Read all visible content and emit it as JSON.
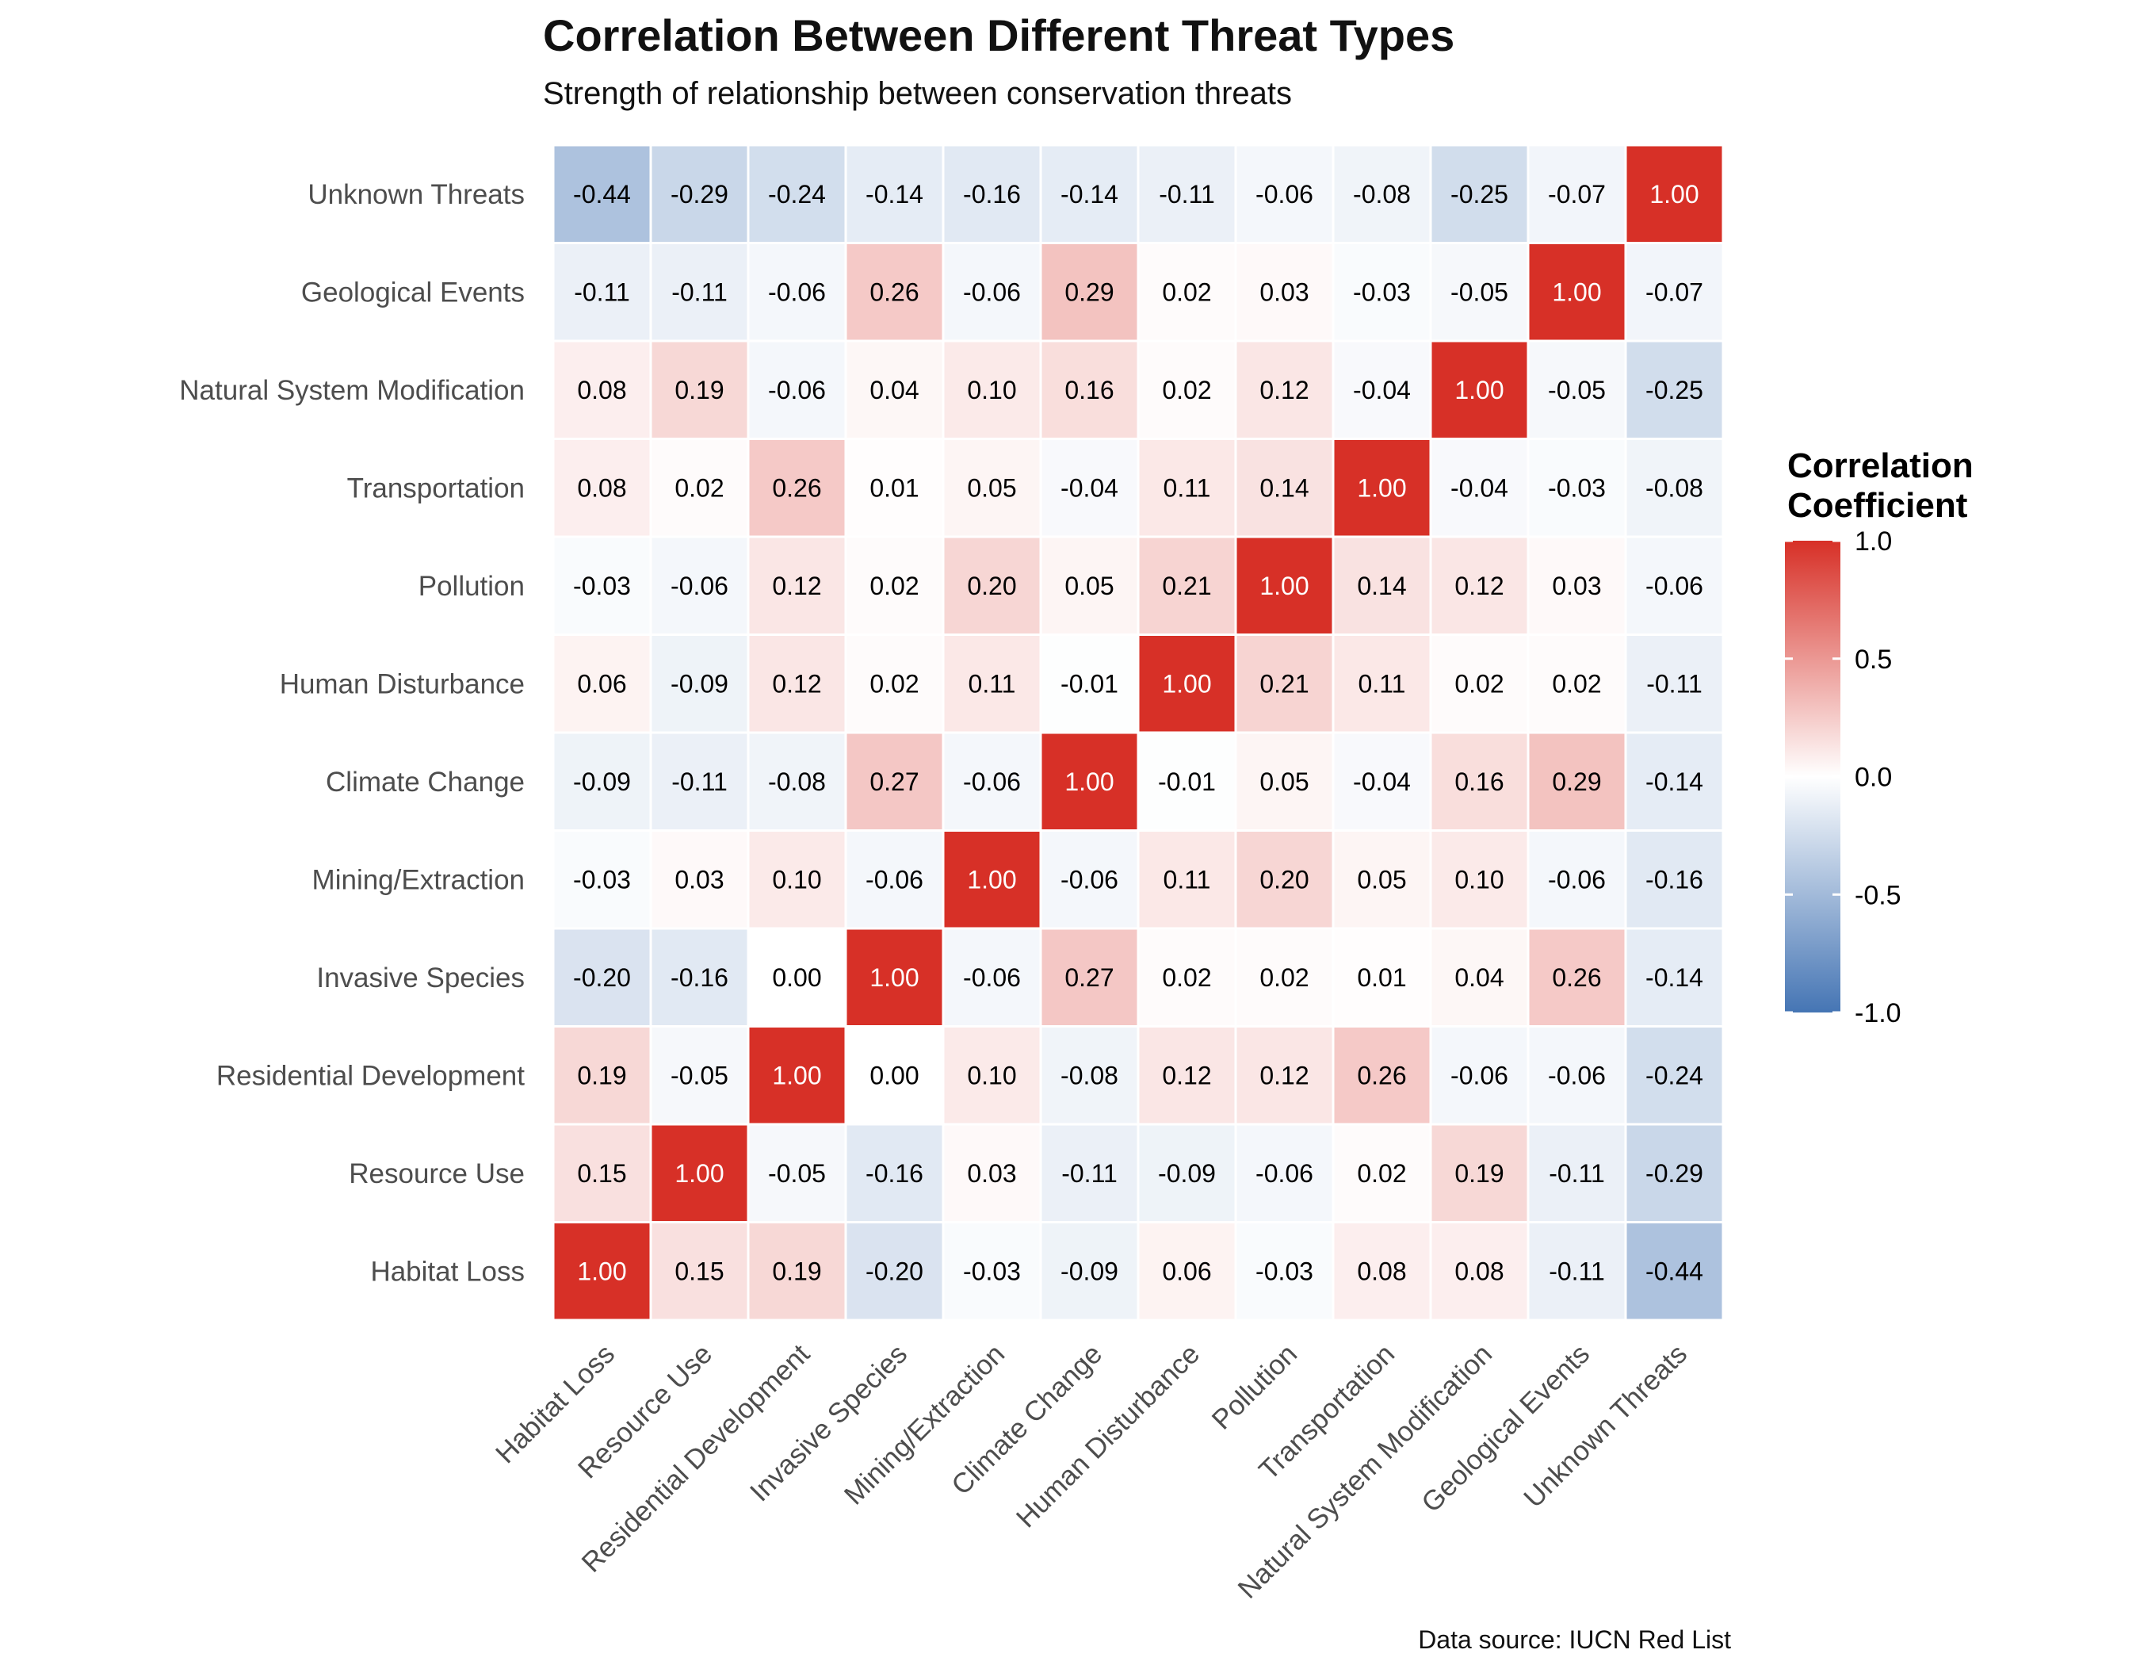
{
  "title": "Correlation Between Different Threat Types",
  "subtitle": "Strength of relationship between conservation threats",
  "caption": "Data source: IUCN Red List",
  "chart_data": {
    "type": "heatmap",
    "categories": [
      "Habitat Loss",
      "Resource Use",
      "Residential Development",
      "Invasive Species",
      "Mining/Extraction",
      "Climate Change",
      "Human Disturbance",
      "Pollution",
      "Transportation",
      "Natural System Modification",
      "Geological Events",
      "Unknown Threats"
    ],
    "values": [
      [
        1.0,
        0.15,
        0.19,
        -0.2,
        -0.03,
        -0.09,
        0.06,
        -0.03,
        0.08,
        0.08,
        -0.11,
        -0.44
      ],
      [
        0.15,
        1.0,
        -0.05,
        -0.16,
        0.03,
        -0.11,
        -0.09,
        -0.06,
        0.02,
        0.19,
        -0.11,
        -0.29
      ],
      [
        0.19,
        -0.05,
        1.0,
        0.0,
        0.1,
        -0.08,
        0.12,
        0.12,
        0.26,
        -0.06,
        -0.06,
        -0.24
      ],
      [
        -0.2,
        -0.16,
        0.0,
        1.0,
        -0.06,
        0.27,
        0.02,
        0.02,
        0.01,
        0.04,
        0.26,
        -0.14
      ],
      [
        -0.03,
        0.03,
        0.1,
        -0.06,
        1.0,
        -0.06,
        0.11,
        0.2,
        0.05,
        0.1,
        -0.06,
        -0.16
      ],
      [
        -0.09,
        -0.11,
        -0.08,
        0.27,
        -0.06,
        1.0,
        -0.01,
        0.05,
        -0.04,
        0.16,
        0.29,
        -0.14
      ],
      [
        0.06,
        -0.09,
        0.12,
        0.02,
        0.11,
        -0.01,
        1.0,
        0.21,
        0.11,
        0.02,
        0.02,
        -0.11
      ],
      [
        -0.03,
        -0.06,
        0.12,
        0.02,
        0.2,
        0.05,
        0.21,
        1.0,
        0.14,
        0.12,
        0.03,
        -0.06
      ],
      [
        0.08,
        0.02,
        0.26,
        0.01,
        0.05,
        -0.04,
        0.11,
        0.14,
        1.0,
        -0.04,
        -0.03,
        -0.08
      ],
      [
        0.08,
        0.19,
        -0.06,
        0.04,
        0.1,
        0.16,
        0.02,
        0.12,
        -0.04,
        1.0,
        -0.05,
        -0.25
      ],
      [
        -0.11,
        -0.11,
        -0.06,
        0.26,
        -0.06,
        0.29,
        0.02,
        0.03,
        -0.03,
        -0.05,
        1.0,
        -0.07
      ],
      [
        -0.44,
        -0.29,
        -0.24,
        -0.14,
        -0.16,
        -0.14,
        -0.11,
        -0.06,
        -0.08,
        -0.25,
        -0.07,
        1.0
      ]
    ],
    "legend": {
      "title": "Correlation Coefficient",
      "title_lines": [
        "Correlation",
        "Coefficient"
      ],
      "ticks": [
        1.0,
        0.5,
        0.0,
        -0.5,
        -1.0
      ],
      "tick_labels": [
        "1.0",
        "0.5",
        "0.0",
        "-0.5",
        "-1.0"
      ],
      "placement": "right"
    },
    "color_scale": {
      "low": "#4575b4",
      "mid": "#ffffff",
      "high": "#d73027",
      "limits": [
        -1,
        1
      ]
    },
    "xlabel": "",
    "ylabel": "",
    "grid": false
  }
}
